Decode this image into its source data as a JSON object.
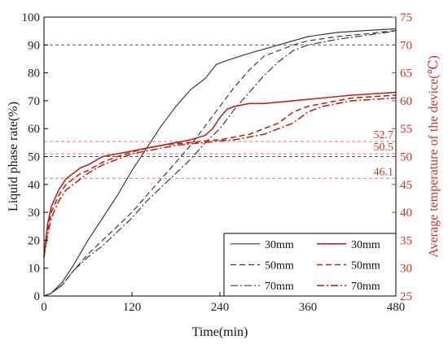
{
  "chart_data": {
    "type": "line",
    "xlabel": "Time(min)",
    "ylabel_left": "Liquid phase rate(%)",
    "ylabel_right": "Average temperature of the device(℃)",
    "xlim": [
      0,
      480
    ],
    "ylim_left": [
      0,
      100
    ],
    "ylim_right": [
      25,
      75
    ],
    "x_ticks": [
      0,
      120,
      240,
      360,
      480
    ],
    "y_ticks_left": [
      0,
      10,
      20,
      30,
      40,
      50,
      60,
      70,
      80,
      90,
      100
    ],
    "y_ticks_right": [
      25,
      30,
      35,
      40,
      45,
      50,
      55,
      60,
      65,
      70,
      75
    ],
    "grid": false,
    "legend_position": "bottom-right",
    "colors": {
      "liquid": "#3a3a3a",
      "temperature": "#b5291c",
      "right_axis": "#c0392b",
      "reference_gray": "#555555",
      "reference_red": "#e07a70"
    },
    "reference_lines_left": [
      90,
      50
    ],
    "reference_lines_right": [
      {
        "value": 52.7,
        "label": "52.7"
      },
      {
        "value": 50.5,
        "label": "50.5"
      },
      {
        "value": 46.1,
        "label": "46.1"
      }
    ],
    "series": [
      {
        "name": "30mm",
        "axis": "left",
        "style": "solid",
        "points": [
          [
            0,
            0
          ],
          [
            10,
            1
          ],
          [
            25,
            5
          ],
          [
            40,
            11
          ],
          [
            60,
            20
          ],
          [
            80,
            28
          ],
          [
            100,
            36
          ],
          [
            120,
            45
          ],
          [
            140,
            53
          ],
          [
            160,
            61
          ],
          [
            180,
            68
          ],
          [
            200,
            74
          ],
          [
            220,
            78
          ],
          [
            235,
            83
          ],
          [
            250,
            84.5
          ],
          [
            280,
            87
          ],
          [
            320,
            90
          ],
          [
            360,
            93
          ],
          [
            400,
            94.5
          ],
          [
            440,
            95.2
          ],
          [
            480,
            95.8
          ]
        ]
      },
      {
        "name": "50mm",
        "axis": "left",
        "style": "dashed",
        "points": [
          [
            0,
            0
          ],
          [
            10,
            1
          ],
          [
            25,
            4
          ],
          [
            40,
            9
          ],
          [
            60,
            15
          ],
          [
            80,
            20
          ],
          [
            100,
            25
          ],
          [
            120,
            30
          ],
          [
            140,
            36
          ],
          [
            160,
            42
          ],
          [
            180,
            48
          ],
          [
            200,
            54
          ],
          [
            220,
            61
          ],
          [
            240,
            68
          ],
          [
            260,
            75
          ],
          [
            280,
            81
          ],
          [
            300,
            86
          ],
          [
            320,
            88
          ],
          [
            340,
            90
          ],
          [
            360,
            91.5
          ],
          [
            400,
            93
          ],
          [
            440,
            94
          ],
          [
            480,
            95.2
          ]
        ]
      },
      {
        "name": "70mm",
        "axis": "left",
        "style": "dashdot",
        "points": [
          [
            0,
            0
          ],
          [
            10,
            1
          ],
          [
            25,
            4
          ],
          [
            40,
            9
          ],
          [
            60,
            14
          ],
          [
            80,
            18
          ],
          [
            100,
            23
          ],
          [
            120,
            28
          ],
          [
            140,
            34
          ],
          [
            160,
            39
          ],
          [
            180,
            44
          ],
          [
            200,
            49
          ],
          [
            220,
            55
          ],
          [
            240,
            60
          ],
          [
            260,
            67
          ],
          [
            280,
            73
          ],
          [
            300,
            79
          ],
          [
            320,
            84
          ],
          [
            340,
            88
          ],
          [
            360,
            90
          ],
          [
            400,
            92
          ],
          [
            440,
            93.5
          ],
          [
            480,
            95
          ]
        ]
      },
      {
        "name": "30mm",
        "axis": "right",
        "style": "solid",
        "points": [
          [
            0,
            32
          ],
          [
            5,
            38
          ],
          [
            10,
            41
          ],
          [
            20,
            44
          ],
          [
            30,
            46
          ],
          [
            40,
            47
          ],
          [
            50,
            48
          ],
          [
            60,
            48.5
          ],
          [
            80,
            50
          ],
          [
            100,
            50.5
          ],
          [
            120,
            51
          ],
          [
            140,
            51.5
          ],
          [
            160,
            52
          ],
          [
            180,
            52.5
          ],
          [
            200,
            53
          ],
          [
            220,
            53.8
          ],
          [
            230,
            55
          ],
          [
            240,
            57
          ],
          [
            250,
            58.5
          ],
          [
            260,
            59
          ],
          [
            280,
            59.5
          ],
          [
            300,
            59.5
          ],
          [
            340,
            60
          ],
          [
            380,
            60.5
          ],
          [
            420,
            61
          ],
          [
            480,
            61.5
          ]
        ]
      },
      {
        "name": "50mm",
        "axis": "right",
        "style": "dashed",
        "points": [
          [
            0,
            32
          ],
          [
            5,
            37
          ],
          [
            10,
            40
          ],
          [
            20,
            43
          ],
          [
            30,
            45
          ],
          [
            40,
            46
          ],
          [
            50,
            47
          ],
          [
            60,
            47.5
          ],
          [
            80,
            49
          ],
          [
            100,
            50
          ],
          [
            120,
            50.8
          ],
          [
            140,
            51.5
          ],
          [
            160,
            52
          ],
          [
            180,
            52.3
          ],
          [
            200,
            52.5
          ],
          [
            220,
            52.8
          ],
          [
            240,
            53
          ],
          [
            260,
            53.5
          ],
          [
            280,
            54
          ],
          [
            300,
            55
          ],
          [
            320,
            56
          ],
          [
            340,
            58
          ],
          [
            360,
            59
          ],
          [
            380,
            59.5
          ],
          [
            420,
            60.5
          ],
          [
            480,
            61
          ]
        ]
      },
      {
        "name": "70mm",
        "axis": "right",
        "style": "dashdot",
        "points": [
          [
            0,
            32
          ],
          [
            5,
            36
          ],
          [
            10,
            39
          ],
          [
            20,
            42
          ],
          [
            30,
            44
          ],
          [
            40,
            45
          ],
          [
            50,
            46
          ],
          [
            60,
            47
          ],
          [
            80,
            48.5
          ],
          [
            100,
            49.5
          ],
          [
            120,
            50.5
          ],
          [
            140,
            51
          ],
          [
            160,
            51.5
          ],
          [
            180,
            52
          ],
          [
            200,
            52.3
          ],
          [
            220,
            52.5
          ],
          [
            240,
            52.8
          ],
          [
            260,
            53
          ],
          [
            280,
            53.5
          ],
          [
            300,
            54
          ],
          [
            320,
            55
          ],
          [
            340,
            56
          ],
          [
            360,
            58
          ],
          [
            380,
            59
          ],
          [
            420,
            60
          ],
          [
            480,
            60.5
          ]
        ]
      }
    ]
  }
}
